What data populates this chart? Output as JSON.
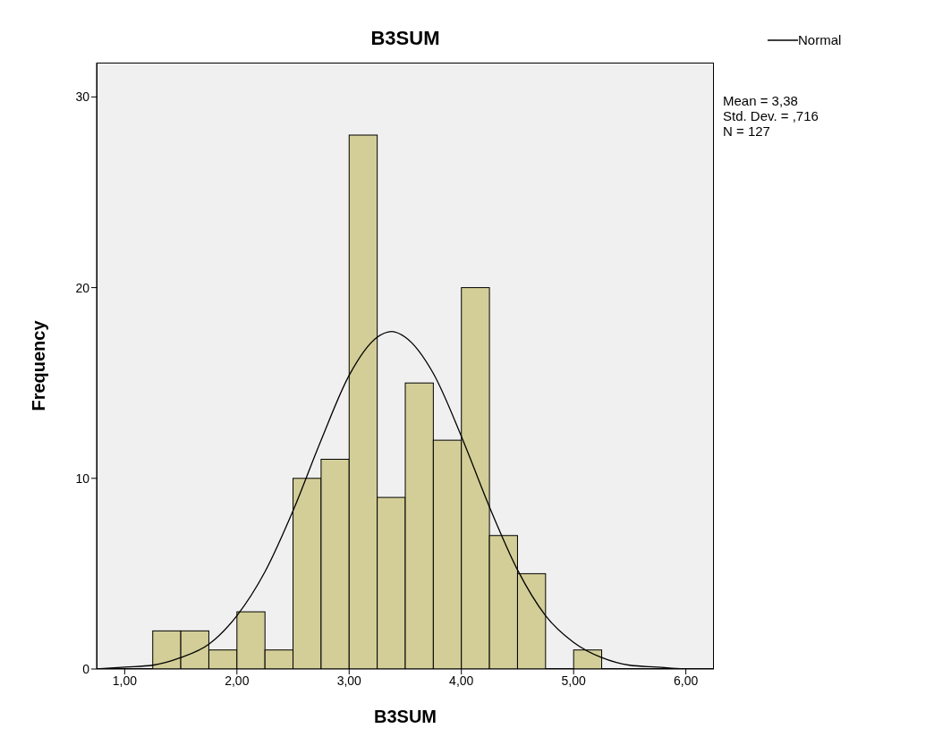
{
  "chart_data": {
    "type": "histogram",
    "title": "B3SUM",
    "xlabel": "B3SUM",
    "ylabel": "Frequency",
    "bins": [
      1.25,
      1.5,
      1.75,
      2,
      2.25,
      2.5,
      2.75,
      3,
      3.25,
      3.5,
      3.75,
      4,
      4.25,
      4.5,
      4.75,
      5,
      5.25
    ],
    "values": [
      2,
      2,
      1,
      3,
      1,
      10,
      11,
      28,
      9,
      15,
      12,
      20,
      7,
      5,
      0,
      1
    ],
    "color": "#d3ce97",
    "series": [
      {
        "name": "Normal",
        "type": "line",
        "color": "#000000",
        "x": [
          0.75,
          1,
          1.25,
          1.5,
          1.75,
          2,
          2.25,
          2.5,
          2.75,
          3,
          3.25,
          3.38,
          3.5,
          3.75,
          4,
          4.25,
          4.5,
          4.75,
          5,
          5.25,
          5.5,
          5.75,
          6,
          6.25
        ],
        "values": [
          0,
          0.1,
          0.2,
          0.6,
          1.3,
          2.8,
          5.1,
          8.3,
          12,
          15.4,
          17.4,
          17.7,
          17.4,
          15.5,
          12.2,
          8.5,
          5.2,
          2.8,
          1.4,
          0.6,
          0.2,
          0.1,
          0,
          0
        ]
      }
    ],
    "xlim": [
      0.75,
      6.25
    ],
    "xticks": [
      {
        "value": 1,
        "label": "1,00"
      },
      {
        "value": 2,
        "label": "2,00"
      },
      {
        "value": 3,
        "label": "3,00"
      },
      {
        "value": 4,
        "label": "4,00"
      },
      {
        "value": 5,
        "label": "5,00"
      },
      {
        "value": 6,
        "label": "6,00"
      }
    ],
    "ylim": [
      0,
      31.8
    ],
    "yticks": [
      0,
      10,
      20,
      30
    ],
    "legend": "top right",
    "marker": "none",
    "line_style": "solid",
    "annotations": [
      "Mean = 3,38",
      "Std. Dev. = ,716",
      "N = 127"
    ]
  }
}
